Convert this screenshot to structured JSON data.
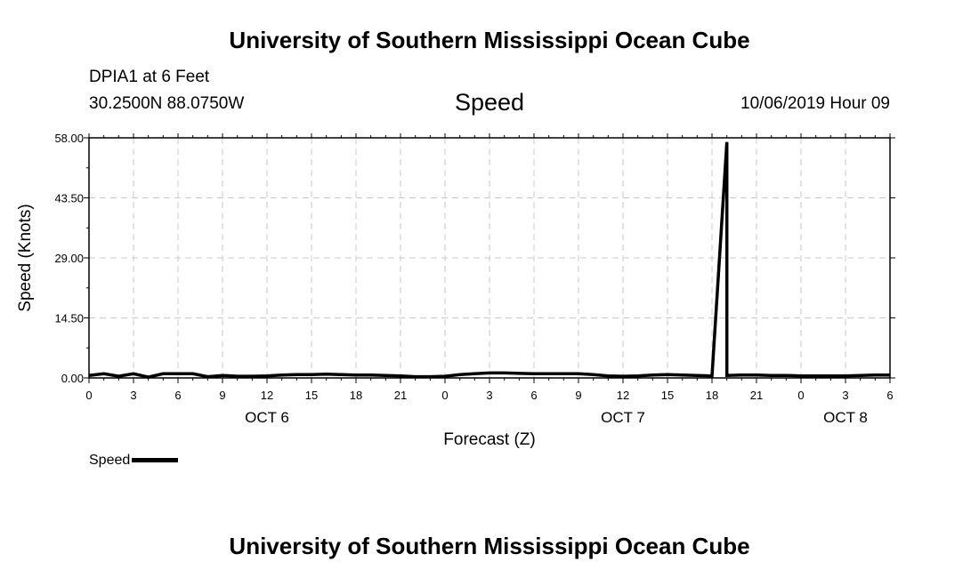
{
  "header": {
    "title": "University of Southern Mississippi Ocean Cube",
    "station": "DPIA1 at 6 Feet",
    "coordinates": "30.2500N 88.0750W",
    "issued": "10/06/2019 Hour 09",
    "footer_title": "University of Southern Mississippi Ocean Cube"
  },
  "chart_data": {
    "type": "line",
    "title": "Speed",
    "xlabel": "Forecast (Z)",
    "ylabel": "Speed (Knots)",
    "ylim": [
      0,
      58
    ],
    "yticks": [
      "0.00",
      "14.50",
      "29.00",
      "43.50",
      "58.00"
    ],
    "ytick_values": [
      0,
      14.5,
      29,
      43.5,
      58
    ],
    "xlim": [
      0,
      54
    ],
    "xtick_hours": [
      0,
      3,
      6,
      9,
      12,
      15,
      18,
      21,
      24,
      27,
      30,
      33,
      36,
      39,
      42,
      45,
      48,
      51,
      54
    ],
    "xtick_labels": [
      "0",
      "3",
      "6",
      "9",
      "12",
      "15",
      "18",
      "21",
      "0",
      "3",
      "6",
      "9",
      "12",
      "15",
      "18",
      "21",
      "0",
      "3",
      "6"
    ],
    "day_labels": [
      {
        "label": "OCT 6",
        "hour": 12
      },
      {
        "label": "OCT 7",
        "hour": 36
      },
      {
        "label": "OCT 8",
        "hour": 51
      }
    ],
    "grid": true,
    "legend": [
      {
        "name": "Speed",
        "color": "#000000"
      }
    ],
    "series": [
      {
        "name": "Speed",
        "x": [
          0,
          1,
          2,
          3,
          4,
          5,
          6,
          7,
          8,
          9,
          10,
          11,
          12,
          13,
          14,
          15,
          16,
          17,
          18,
          19,
          20,
          21,
          22,
          23,
          24,
          25,
          26,
          27,
          28,
          29,
          30,
          31,
          32,
          33,
          34,
          35,
          36,
          37,
          38,
          39,
          40,
          41,
          42,
          43,
          44,
          45,
          46,
          47,
          48,
          49,
          50,
          51,
          52,
          53,
          54
        ],
        "values": [
          0.6,
          1.0,
          0.4,
          1.0,
          0.2,
          1.0,
          1.0,
          1.0,
          0.3,
          0.6,
          0.4,
          0.4,
          0.5,
          0.7,
          0.8,
          0.8,
          0.9,
          0.8,
          0.7,
          0.7,
          0.6,
          0.5,
          0.3,
          0.3,
          0.4,
          0.8,
          1.0,
          1.2,
          1.2,
          1.1,
          1.0,
          1.0,
          1.0,
          1.0,
          0.8,
          0.5,
          0.4,
          0.5,
          0.7,
          0.8,
          0.7,
          0.6,
          0.5,
          57.0,
          0.7,
          0.7,
          0.6,
          0.6,
          0.5,
          0.5,
          0.5,
          0.5,
          0.6,
          0.7,
          0.7
        ],
        "extra_points": [
          [
            43.0,
            0.6
          ],
          [
            44.0,
            0.7
          ]
        ]
      }
    ]
  }
}
